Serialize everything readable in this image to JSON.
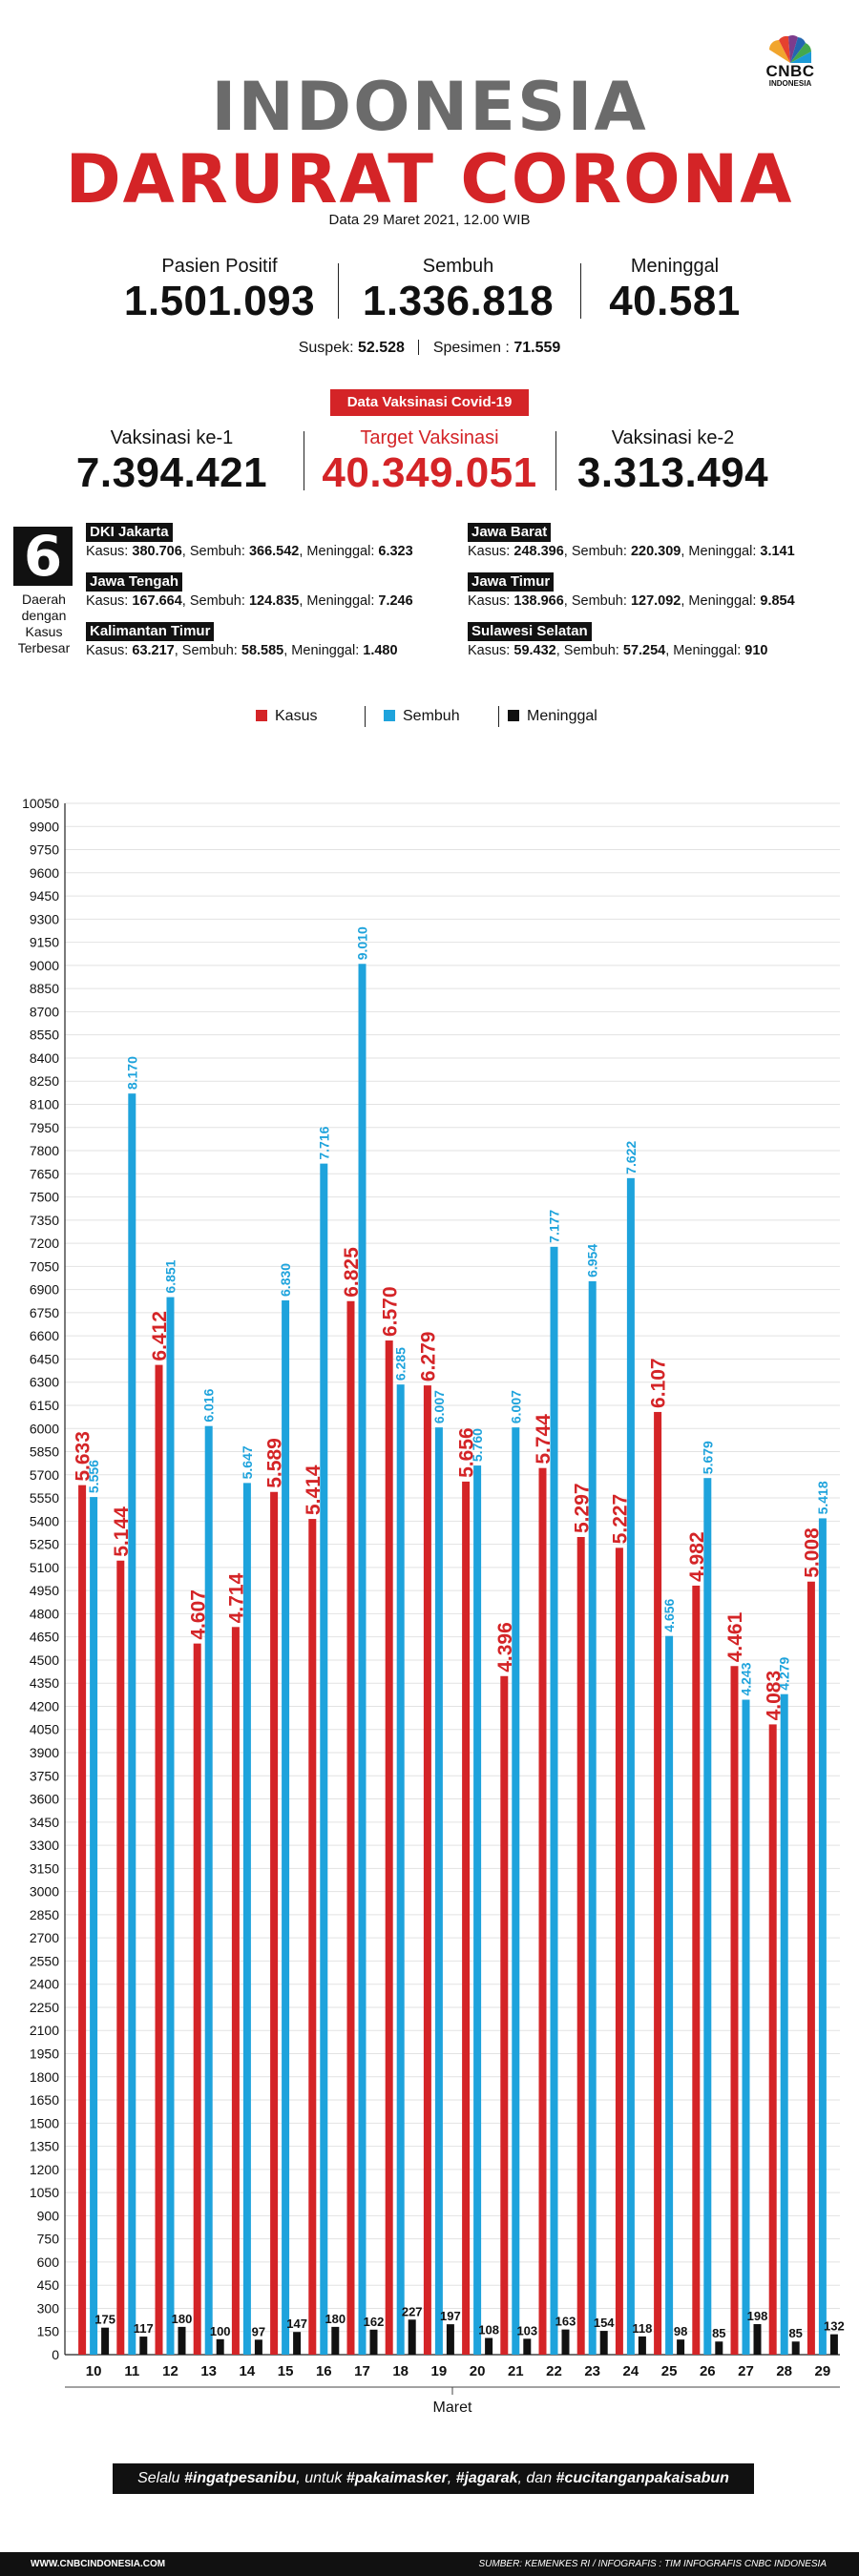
{
  "header": {
    "logo_text": "CNBC",
    "logo_sub": "INDONESIA",
    "title_line1": "INDONESIA",
    "title_line2": "DARURAT CORONA",
    "date": "Data 29 Maret 2021, 12.00 WIB"
  },
  "stats": {
    "positif_label": "Pasien Positif",
    "positif_value": "1.501.093",
    "sembuh_label": "Sembuh",
    "sembuh_value": "1.336.818",
    "meninggal_label": "Meninggal",
    "meninggal_value": "40.581",
    "suspek_label": "Suspek:",
    "suspek_value": "52.528",
    "spesimen_label": "Spesimen :",
    "spesimen_value": "71.559"
  },
  "vaksin": {
    "badge": "Data Vaksinasi Covid-19",
    "ke1_label": "Vaksinasi ke-1",
    "ke1_value": "7.394.421",
    "target_label": "Target Vaksinasi",
    "target_value": "40.349.051",
    "ke2_label": "Vaksinasi ke-2",
    "ke2_value": "3.313.494"
  },
  "daerah": {
    "count": "6",
    "label": "Daerah dengan Kasus Terbesar",
    "k_label": "Kasus:",
    "s_label": "Sembuh:",
    "m_label": "Meninggal:",
    "provinces": [
      {
        "name": "DKI Jakarta",
        "kasus": "380.706",
        "sembuh": "366.542",
        "meninggal": "6.323"
      },
      {
        "name": "Jawa Barat",
        "kasus": "248.396",
        "sembuh": "220.309",
        "meninggal": "3.141"
      },
      {
        "name": "Jawa Tengah",
        "kasus": "167.664",
        "sembuh": "124.835",
        "meninggal": "7.246"
      },
      {
        "name": "Jawa Timur",
        "kasus": "138.966",
        "sembuh": "127.092",
        "meninggal": "9.854"
      },
      {
        "name": "Kalimantan Timur",
        "kasus": "63.217",
        "sembuh": "58.585",
        "meninggal": "1.480"
      },
      {
        "name": "Sulawesi Selatan",
        "kasus": "59.432",
        "sembuh": "57.254",
        "meninggal": "910"
      }
    ]
  },
  "colors": {
    "kasus": "#d42427",
    "sembuh": "#1ea3dc",
    "meninggal": "#111111",
    "title_gray": "#6b6b6b"
  },
  "chart_data": {
    "type": "bar",
    "xlabel": "Maret",
    "ylabel": "",
    "ylim": [
      0,
      10050
    ],
    "ytick_step": 150,
    "grid": true,
    "legend_position": "top",
    "categories": [
      "10",
      "11",
      "12",
      "13",
      "14",
      "15",
      "16",
      "17",
      "18",
      "19",
      "20",
      "21",
      "22",
      "23",
      "24",
      "25",
      "26",
      "27",
      "28",
      "29"
    ],
    "series": [
      {
        "name": "Kasus",
        "color": "#d42427",
        "label_size": 21,
        "values": [
          5633,
          5144,
          6412,
          4607,
          4714,
          5589,
          5414,
          6825,
          6570,
          6279,
          5656,
          4396,
          5744,
          5297,
          5227,
          6107,
          4982,
          4461,
          4083,
          5008
        ],
        "labels": [
          "5.633",
          "5.144",
          "6.412",
          "4.607",
          "4.714",
          "5.589",
          "5.414",
          "6.825",
          "6.570",
          "6.279",
          "5.656",
          "4.396",
          "5.744",
          "5.297",
          "5.227",
          "6.107",
          "4.982",
          "4.461",
          "4.083",
          "5.008"
        ]
      },
      {
        "name": "Sembuh",
        "color": "#1ea3dc",
        "label_size": 14,
        "values": [
          5556,
          8170,
          6851,
          6016,
          5647,
          6830,
          7716,
          9010,
          6285,
          6007,
          5760,
          6007,
          7177,
          6954,
          7622,
          4656,
          5679,
          4243,
          4279,
          5418
        ],
        "labels": [
          "5.556",
          "8.170",
          "6.851",
          "6.016",
          "5.647",
          "6.830",
          "7.716",
          "9.010",
          "6.285",
          "6.007",
          "5.760",
          "6.007",
          "7.177",
          "6.954",
          "7.622",
          "4.656",
          "5.679",
          "4.243",
          "4.279",
          "5.418"
        ]
      },
      {
        "name": "Meninggal",
        "color": "#111111",
        "label_size": 13,
        "values": [
          175,
          117,
          180,
          100,
          97,
          147,
          180,
          162,
          227,
          197,
          108,
          103,
          163,
          154,
          118,
          98,
          85,
          198,
          85,
          132
        ],
        "labels": [
          "175",
          "117",
          "180",
          "100",
          "97",
          "147",
          "180",
          "162",
          "227",
          "197",
          "108",
          "103",
          "163",
          "154",
          "118",
          "98",
          "85",
          "198",
          "85",
          "132"
        ]
      }
    ]
  },
  "footer": {
    "slogan_1": "Selalu ",
    "slogan_2": "#ingatpesanibu",
    "slogan_3": ", untuk ",
    "slogan_4": "#pakaimasker",
    "slogan_5": ", ",
    "slogan_6": "#jagarak",
    "slogan_7": ", dan ",
    "slogan_8": "#cucitanganpakaisabun",
    "website": "WWW.CNBCINDONESIA.COM",
    "source": "SUMBER: KEMENKES RI / INFOGRAFIS : TIM INFOGRAFIS CNBC INDONESIA"
  }
}
